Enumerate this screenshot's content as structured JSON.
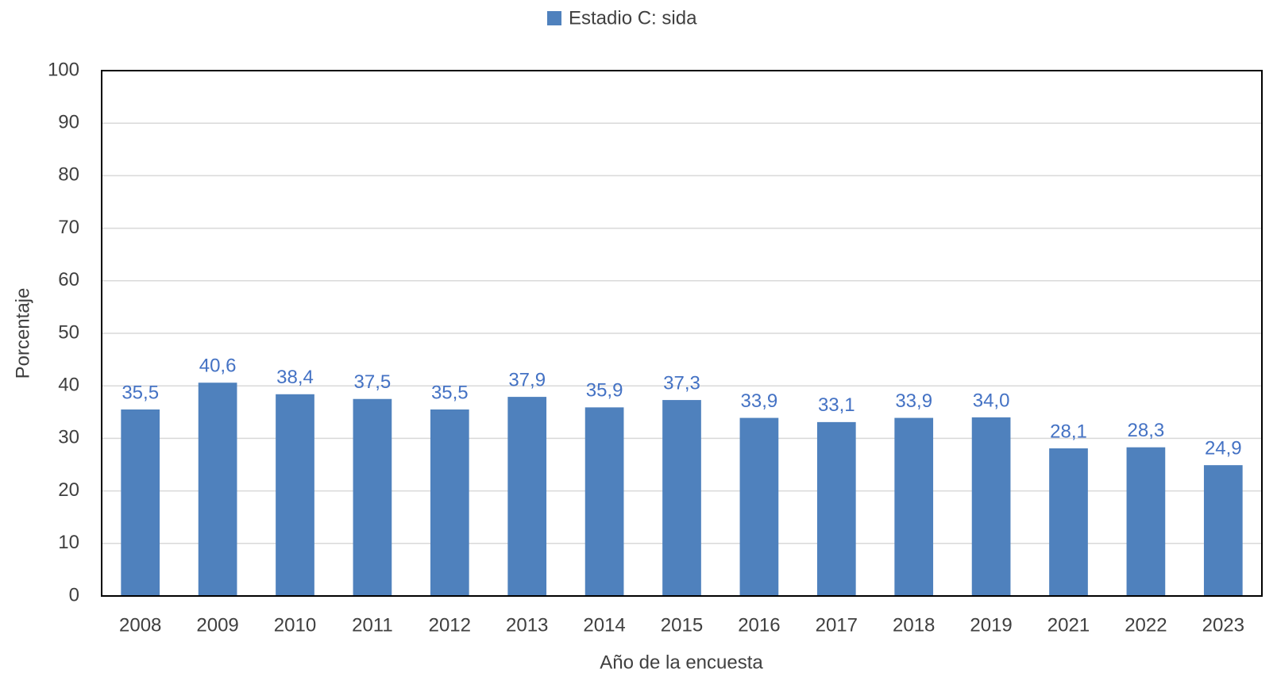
{
  "chart_data": {
    "type": "bar",
    "x_label": "Año de la encuesta",
    "y_label": "Porcentaje",
    "categories": [
      "2008",
      "2009",
      "2010",
      "2011",
      "2012",
      "2013",
      "2014",
      "2015",
      "2016",
      "2017",
      "2018",
      "2019",
      "2021",
      "2022",
      "2023"
    ],
    "series": [
      {
        "name": "Estadio C: sida",
        "color": "#4f81bd",
        "values": [
          35.5,
          40.6,
          38.4,
          37.5,
          35.5,
          37.9,
          35.9,
          37.3,
          33.9,
          33.1,
          33.9,
          34.0,
          28.1,
          28.3,
          24.9
        ],
        "value_labels": [
          "35,5",
          "40,6",
          "38,4",
          "37,5",
          "35,5",
          "37,9",
          "35,9",
          "37,3",
          "33,9",
          "33,1",
          "33,9",
          "34,0",
          "28,1",
          "28,3",
          "24,9"
        ]
      }
    ],
    "value_label_color": "#4472c4",
    "ylim": [
      0,
      100
    ],
    "yticks": [
      0,
      10,
      20,
      30,
      40,
      50,
      60,
      70,
      80,
      90,
      100
    ],
    "grid": true,
    "legend": "top"
  }
}
